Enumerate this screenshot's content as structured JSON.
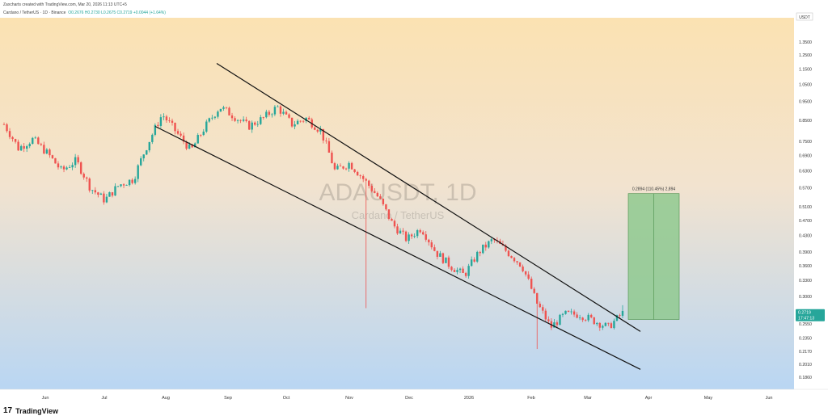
{
  "header": {
    "created_by": "Zaxcharts created with TradingView.com, Mar 20, 2026 11:13 UTC+5",
    "symbol": "Cardano / TetherUS · 1D · Binance",
    "ohlc": "O0.2676  H0.2730  L0.2675  C0.2719  +0.0044 (+1.64%)"
  },
  "currency": "USDT",
  "watermark": {
    "title": "ADAUSDT, 1D",
    "subtitle": "Cardano / TetherUS"
  },
  "measure_label": "0.2894 (110.45%) 2,894",
  "price_tag": {
    "price": "0.2719",
    "countdown": "17:47:13"
  },
  "brand": {
    "logo": "17",
    "name": "TradingView"
  },
  "colors": {
    "up": "#26a69a",
    "down": "#ef5350",
    "measure_fill": "#8fc98f",
    "price_tag": "#26a69a"
  },
  "chart_data": {
    "type": "candlestick",
    "y_scale": "log",
    "ylim": [
      0.175,
      1.5
    ],
    "y_ticks": [
      "1.3500",
      "1.2500",
      "1.1500",
      "1.0500",
      "0.9500",
      "0.8500",
      "0.7500",
      "0.6900",
      "0.6300",
      "0.5700",
      "0.5100",
      "0.4700",
      "0.4300",
      "0.3900",
      "0.3600",
      "0.3300",
      "0.3000",
      "0.2750",
      "0.2550",
      "0.2350",
      "0.2170",
      "0.2010",
      "0.1860"
    ],
    "x_labels": [
      "Jun",
      "Jul",
      "Aug",
      "Sep",
      "Oct",
      "Nov",
      "Dec",
      "2026",
      "Feb",
      "Mar",
      "Apr",
      "May",
      "Jun"
    ],
    "series": [
      {
        "name": "ADAUSDT",
        "anchors": [
          [
            "Jun",
            0.83
          ],
          [
            "Jun",
            0.72
          ],
          [
            "Jun",
            0.76
          ],
          [
            "Jun",
            0.7
          ],
          [
            "Jun",
            0.63
          ],
          [
            "Jun",
            0.67
          ],
          [
            "Jul",
            0.57
          ],
          [
            "Jul",
            0.53
          ],
          [
            "Jul",
            0.58
          ],
          [
            "Jul",
            0.6
          ],
          [
            "Jul",
            0.74
          ],
          [
            "Jul",
            0.88
          ],
          [
            "Aug",
            0.79
          ],
          [
            "Aug",
            0.71
          ],
          [
            "Aug",
            0.82
          ],
          [
            "Aug",
            0.92
          ],
          [
            "Aug",
            0.87
          ],
          [
            "Sep",
            0.82
          ],
          [
            "Sep",
            0.86
          ],
          [
            "Sep",
            0.92
          ],
          [
            "Sep",
            0.83
          ],
          [
            "Oct",
            0.86
          ],
          [
            "Oct",
            0.8
          ],
          [
            "Oct",
            0.63
          ],
          [
            "Oct",
            0.66
          ],
          [
            "Oct",
            0.6
          ],
          [
            "Nov",
            0.54
          ],
          [
            "Nov",
            0.46
          ],
          [
            "Nov",
            0.42
          ],
          [
            "Nov",
            0.45
          ],
          [
            "Dec",
            0.39
          ],
          [
            "Dec",
            0.36
          ],
          [
            "Dec",
            0.34
          ],
          [
            "Dec",
            0.39
          ],
          [
            "2026",
            0.42
          ],
          [
            "2026",
            0.39
          ],
          [
            "2026",
            0.36
          ],
          [
            "Feb",
            0.29
          ],
          [
            "Feb",
            0.25
          ],
          [
            "Feb",
            0.27
          ],
          [
            "Feb",
            0.27
          ],
          [
            "Mar",
            0.26
          ],
          [
            "Mar",
            0.25
          ],
          [
            "Mar",
            0.2719
          ]
        ]
      }
    ],
    "last_price": 0.2719,
    "lines": [
      {
        "name": "channel-upper",
        "from": [
          "Aug",
          1.19
        ],
        "to": [
          "Apr",
          0.244
        ]
      },
      {
        "name": "channel-lower",
        "from": [
          "Jul",
          0.82
        ],
        "to": [
          "Apr",
          0.195
        ]
      }
    ],
    "measure": {
      "label": "0.2894 (110.45%) 2,894",
      "from_price": 0.2619,
      "to_price": 0.5513
    },
    "wick_spike_low": 0.28,
    "feb_spike_low": 0.22
  }
}
